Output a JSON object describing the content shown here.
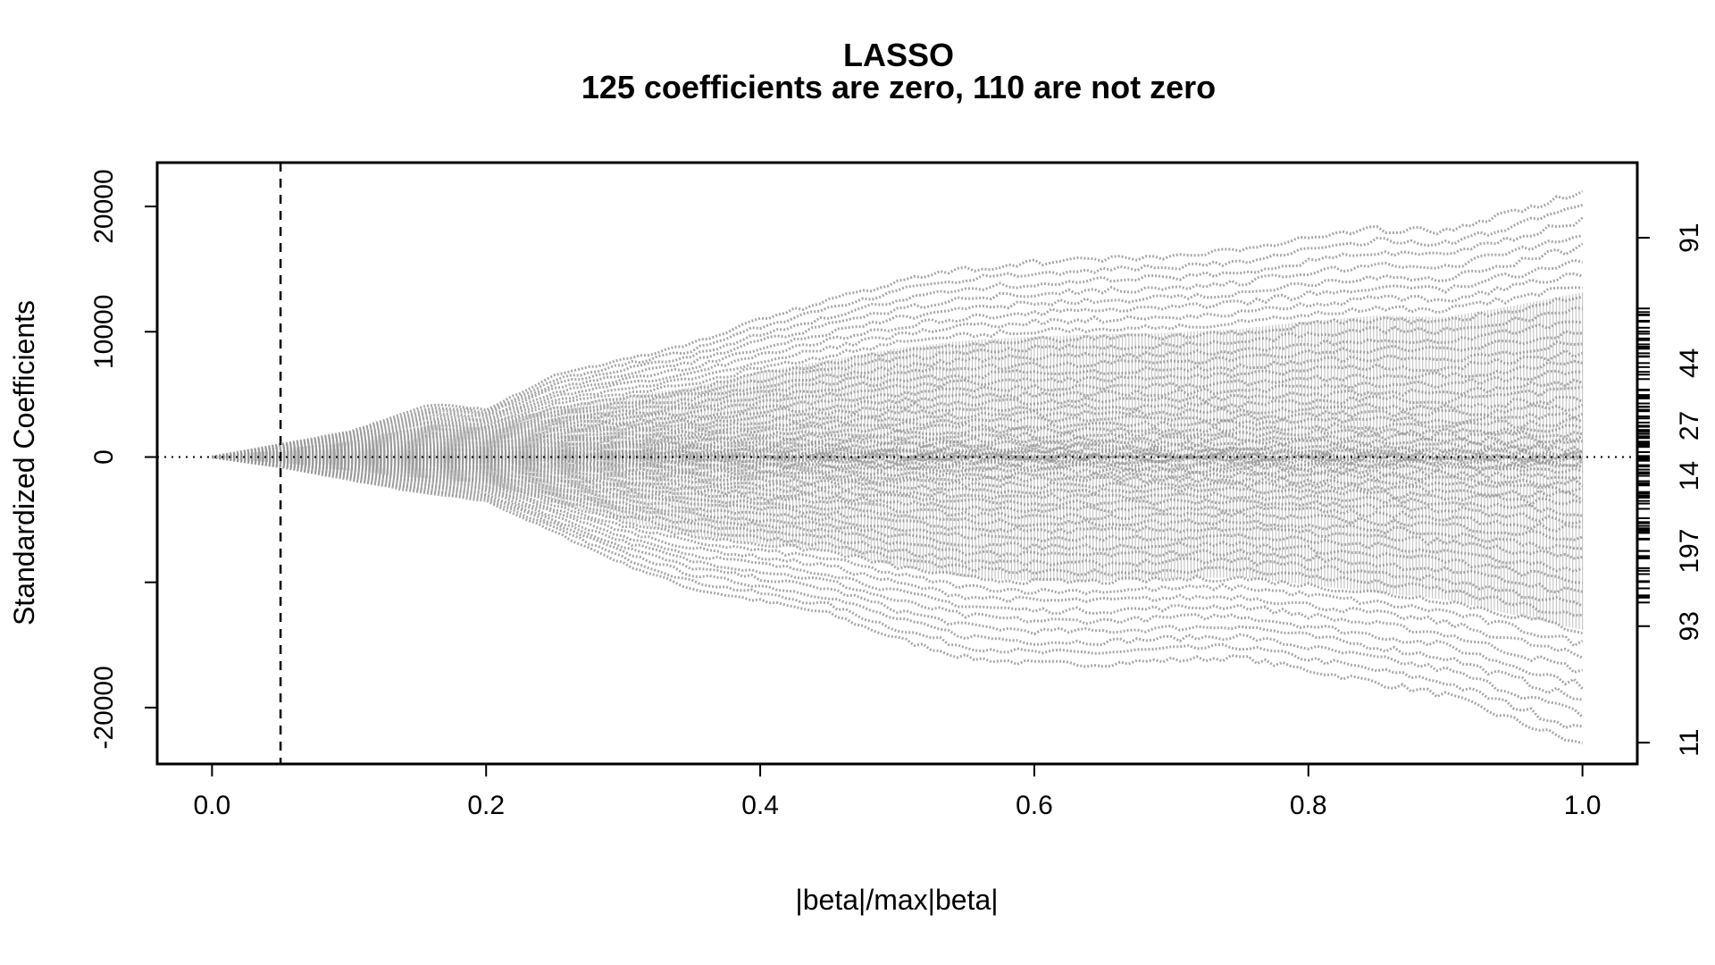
{
  "chart_data": {
    "type": "line",
    "title": "LASSO",
    "subtitle": "125 coefficients are zero, 110 are not zero",
    "xlabel": "|beta|/max|beta|",
    "ylabel": "Standardized Coefficients",
    "xlim": [
      -0.04,
      1.04
    ],
    "ylim": [
      -24500,
      23500
    ],
    "x_ticks": [
      0.0,
      0.2,
      0.4,
      0.6,
      0.8,
      1.0
    ],
    "x_tick_labels": [
      "0.0",
      "0.2",
      "0.4",
      "0.6",
      "0.8",
      "1.0"
    ],
    "y_ticks": [
      -20000,
      -10000,
      0,
      10000,
      20000
    ],
    "y_tick_labels": [
      "-20000",
      "",
      "0",
      "10000",
      "20000"
    ],
    "selected_x": 0.05,
    "zero_line": 0,
    "right_axis_labels": [
      {
        "label": "11",
        "y": -22800
      },
      {
        "label": "93",
        "y": -13500
      },
      {
        "label": "197",
        "y": -7500
      },
      {
        "label": "14",
        "y": -1500
      },
      {
        "label": "27",
        "y": 2500
      },
      {
        "label": "44",
        "y": 7500
      },
      {
        "label": "91",
        "y": 17500
      }
    ],
    "series_color": "#999999",
    "series_envelope": [
      {
        "name": "upper",
        "points": [
          [
            0,
            0
          ],
          [
            0.05,
            1000
          ],
          [
            0.1,
            2000
          ],
          [
            0.16,
            4200
          ],
          [
            0.2,
            3800
          ],
          [
            0.25,
            6500
          ],
          [
            0.3,
            7800
          ],
          [
            0.35,
            9000
          ],
          [
            0.4,
            11000
          ],
          [
            0.45,
            12500
          ],
          [
            0.5,
            14000
          ],
          [
            0.55,
            15000
          ],
          [
            0.6,
            15500
          ],
          [
            0.65,
            15800
          ],
          [
            0.7,
            16000
          ],
          [
            0.75,
            16500
          ],
          [
            0.8,
            17500
          ],
          [
            0.85,
            18200
          ],
          [
            0.9,
            18000
          ],
          [
            0.95,
            19500
          ],
          [
            1.0,
            21200
          ]
        ]
      },
      {
        "name": "lower",
        "points": [
          [
            0,
            0
          ],
          [
            0.05,
            -800
          ],
          [
            0.1,
            -1800
          ],
          [
            0.15,
            -2800
          ],
          [
            0.2,
            -3500
          ],
          [
            0.25,
            -6000
          ],
          [
            0.3,
            -8500
          ],
          [
            0.35,
            -10500
          ],
          [
            0.4,
            -11500
          ],
          [
            0.45,
            -12500
          ],
          [
            0.5,
            -14500
          ],
          [
            0.55,
            -16000
          ],
          [
            0.6,
            -16500
          ],
          [
            0.65,
            -16500
          ],
          [
            0.7,
            -16200
          ],
          [
            0.75,
            -16000
          ],
          [
            0.8,
            -17000
          ],
          [
            0.85,
            -18000
          ],
          [
            0.9,
            -19000
          ],
          [
            0.95,
            -21000
          ],
          [
            1.0,
            -23000
          ]
        ]
      }
    ],
    "grid": false,
    "legend": "none"
  }
}
